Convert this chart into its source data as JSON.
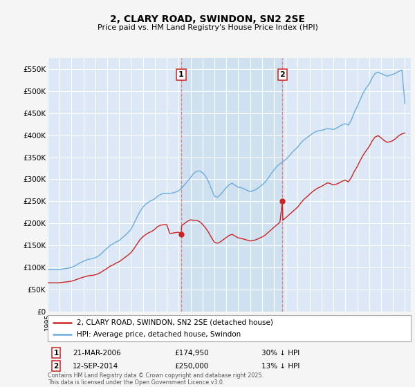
{
  "title": "2, CLARY ROAD, SWINDON, SN2 2SE",
  "subtitle": "Price paid vs. HM Land Registry's House Price Index (HPI)",
  "ylim": [
    0,
    575000
  ],
  "yticks": [
    0,
    50000,
    100000,
    150000,
    200000,
    250000,
    300000,
    350000,
    400000,
    450000,
    500000,
    550000
  ],
  "ytick_labels": [
    "£0",
    "£50K",
    "£100K",
    "£150K",
    "£200K",
    "£250K",
    "£300K",
    "£350K",
    "£400K",
    "£450K",
    "£500K",
    "£550K"
  ],
  "background_color": "#f5f5f5",
  "plot_bg_color": "#dce8f5",
  "shade_color": "#c8dcf0",
  "grid_color": "#ffffff",
  "hpi_color": "#6aabdb",
  "price_color": "#cc2222",
  "vline_color": "#e08080",
  "marker1_date": 2006.21,
  "marker1_price": 174950,
  "marker1_date_str": "21-MAR-2006",
  "marker1_pct": "30% ↓ HPI",
  "marker2_date": 2014.71,
  "marker2_price": 250000,
  "marker2_date_str": "12-SEP-2014",
  "marker2_pct": "13% ↓ HPI",
  "legend_label_price": "2, CLARY ROAD, SWINDON, SN2 2SE (detached house)",
  "legend_label_hpi": "HPI: Average price, detached house, Swindon",
  "footer": "Contains HM Land Registry data © Crown copyright and database right 2025.\nThis data is licensed under the Open Government Licence v3.0.",
  "hpi_data": [
    [
      1995.0,
      95000
    ],
    [
      1995.25,
      95500
    ],
    [
      1995.5,
      95200
    ],
    [
      1995.75,
      94800
    ],
    [
      1996.0,
      95500
    ],
    [
      1996.25,
      96500
    ],
    [
      1996.5,
      97500
    ],
    [
      1996.75,
      98500
    ],
    [
      1997.0,
      100000
    ],
    [
      1997.25,
      103000
    ],
    [
      1997.5,
      107000
    ],
    [
      1997.75,
      111000
    ],
    [
      1998.0,
      114000
    ],
    [
      1998.25,
      117000
    ],
    [
      1998.5,
      119000
    ],
    [
      1998.75,
      120000
    ],
    [
      1999.0,
      122000
    ],
    [
      1999.25,
      126000
    ],
    [
      1999.5,
      131000
    ],
    [
      1999.75,
      138000
    ],
    [
      2000.0,
      144000
    ],
    [
      2000.25,
      150000
    ],
    [
      2000.5,
      154000
    ],
    [
      2000.75,
      158000
    ],
    [
      2001.0,
      161000
    ],
    [
      2001.25,
      167000
    ],
    [
      2001.5,
      173000
    ],
    [
      2001.75,
      179000
    ],
    [
      2002.0,
      187000
    ],
    [
      2002.25,
      200000
    ],
    [
      2002.5,
      214000
    ],
    [
      2002.75,
      227000
    ],
    [
      2003.0,
      237000
    ],
    [
      2003.25,
      244000
    ],
    [
      2003.5,
      249000
    ],
    [
      2003.75,
      252000
    ],
    [
      2004.0,
      256000
    ],
    [
      2004.25,
      262000
    ],
    [
      2004.5,
      266000
    ],
    [
      2004.75,
      268000
    ],
    [
      2005.0,
      268000
    ],
    [
      2005.25,
      268000
    ],
    [
      2005.5,
      269000
    ],
    [
      2005.75,
      271000
    ],
    [
      2006.0,
      274000
    ],
    [
      2006.25,
      280000
    ],
    [
      2006.5,
      288000
    ],
    [
      2006.75,
      296000
    ],
    [
      2007.0,
      304000
    ],
    [
      2007.25,
      313000
    ],
    [
      2007.5,
      318000
    ],
    [
      2007.75,
      319000
    ],
    [
      2008.0,
      315000
    ],
    [
      2008.25,
      307000
    ],
    [
      2008.5,
      295000
    ],
    [
      2008.75,
      278000
    ],
    [
      2009.0,
      262000
    ],
    [
      2009.25,
      259000
    ],
    [
      2009.5,
      265000
    ],
    [
      2009.75,
      273000
    ],
    [
      2010.0,
      281000
    ],
    [
      2010.25,
      288000
    ],
    [
      2010.5,
      291000
    ],
    [
      2010.75,
      286000
    ],
    [
      2011.0,
      282000
    ],
    [
      2011.25,
      281000
    ],
    [
      2011.5,
      278000
    ],
    [
      2011.75,
      275000
    ],
    [
      2012.0,
      272000
    ],
    [
      2012.25,
      274000
    ],
    [
      2012.5,
      277000
    ],
    [
      2012.75,
      282000
    ],
    [
      2013.0,
      287000
    ],
    [
      2013.25,
      293000
    ],
    [
      2013.5,
      302000
    ],
    [
      2013.75,
      312000
    ],
    [
      2014.0,
      321000
    ],
    [
      2014.25,
      329000
    ],
    [
      2014.5,
      335000
    ],
    [
      2014.75,
      340000
    ],
    [
      2015.0,
      345000
    ],
    [
      2015.25,
      352000
    ],
    [
      2015.5,
      360000
    ],
    [
      2015.75,
      367000
    ],
    [
      2016.0,
      373000
    ],
    [
      2016.25,
      382000
    ],
    [
      2016.5,
      389000
    ],
    [
      2016.75,
      394000
    ],
    [
      2017.0,
      399000
    ],
    [
      2017.25,
      404000
    ],
    [
      2017.5,
      408000
    ],
    [
      2017.75,
      410000
    ],
    [
      2018.0,
      411000
    ],
    [
      2018.25,
      413000
    ],
    [
      2018.5,
      415000
    ],
    [
      2018.75,
      414000
    ],
    [
      2019.0,
      413000
    ],
    [
      2019.25,
      416000
    ],
    [
      2019.5,
      420000
    ],
    [
      2019.75,
      424000
    ],
    [
      2020.0,
      426000
    ],
    [
      2020.25,
      423000
    ],
    [
      2020.5,
      434000
    ],
    [
      2020.75,
      452000
    ],
    [
      2021.0,
      465000
    ],
    [
      2021.25,
      481000
    ],
    [
      2021.5,
      496000
    ],
    [
      2021.75,
      507000
    ],
    [
      2022.0,
      516000
    ],
    [
      2022.25,
      530000
    ],
    [
      2022.5,
      540000
    ],
    [
      2022.75,
      543000
    ],
    [
      2023.0,
      540000
    ],
    [
      2023.25,
      537000
    ],
    [
      2023.5,
      534000
    ],
    [
      2023.75,
      536000
    ],
    [
      2024.0,
      538000
    ],
    [
      2024.25,
      541000
    ],
    [
      2024.5,
      545000
    ],
    [
      2024.75,
      548000
    ],
    [
      2025.0,
      472000
    ]
  ],
  "price_data": [
    [
      1995.0,
      65000
    ],
    [
      1995.25,
      65200
    ],
    [
      1995.5,
      65100
    ],
    [
      1995.75,
      65000
    ],
    [
      1996.0,
      65500
    ],
    [
      1996.25,
      66200
    ],
    [
      1996.5,
      67000
    ],
    [
      1996.75,
      67800
    ],
    [
      1997.0,
      69000
    ],
    [
      1997.25,
      71000
    ],
    [
      1997.5,
      73500
    ],
    [
      1997.75,
      76000
    ],
    [
      1998.0,
      78000
    ],
    [
      1998.25,
      80000
    ],
    [
      1998.5,
      81500
    ],
    [
      1998.75,
      82000
    ],
    [
      1999.0,
      83500
    ],
    [
      1999.25,
      86000
    ],
    [
      1999.5,
      89500
    ],
    [
      1999.75,
      94000
    ],
    [
      2000.0,
      98000
    ],
    [
      2000.25,
      103000
    ],
    [
      2000.5,
      106000
    ],
    [
      2000.75,
      110000
    ],
    [
      2001.0,
      113000
    ],
    [
      2001.25,
      118000
    ],
    [
      2001.5,
      123000
    ],
    [
      2001.75,
      128000
    ],
    [
      2002.0,
      134000
    ],
    [
      2002.25,
      143000
    ],
    [
      2002.5,
      153000
    ],
    [
      2002.75,
      163000
    ],
    [
      2003.0,
      170000
    ],
    [
      2003.25,
      175000
    ],
    [
      2003.5,
      179000
    ],
    [
      2003.75,
      182000
    ],
    [
      2004.0,
      187000
    ],
    [
      2004.25,
      193000
    ],
    [
      2004.5,
      196000
    ],
    [
      2004.75,
      197000
    ],
    [
      2005.0,
      197000
    ],
    [
      2005.25,
      177000
    ],
    [
      2005.5,
      178000
    ],
    [
      2005.75,
      179000
    ],
    [
      2006.0,
      180000
    ],
    [
      2006.21,
      174950
    ],
    [
      2006.25,
      195000
    ],
    [
      2006.5,
      200000
    ],
    [
      2006.75,
      205000
    ],
    [
      2007.0,
      208000
    ],
    [
      2007.25,
      207000
    ],
    [
      2007.5,
      207000
    ],
    [
      2007.75,
      204000
    ],
    [
      2008.0,
      198000
    ],
    [
      2008.25,
      190000
    ],
    [
      2008.5,
      180000
    ],
    [
      2008.75,
      168000
    ],
    [
      2009.0,
      157000
    ],
    [
      2009.25,
      155000
    ],
    [
      2009.5,
      158000
    ],
    [
      2009.75,
      163000
    ],
    [
      2010.0,
      168000
    ],
    [
      2010.25,
      173000
    ],
    [
      2010.5,
      175000
    ],
    [
      2010.75,
      171000
    ],
    [
      2011.0,
      167000
    ],
    [
      2011.25,
      166000
    ],
    [
      2011.5,
      164000
    ],
    [
      2011.75,
      162000
    ],
    [
      2012.0,
      160000
    ],
    [
      2012.25,
      161000
    ],
    [
      2012.5,
      163000
    ],
    [
      2012.75,
      166000
    ],
    [
      2013.0,
      169000
    ],
    [
      2013.25,
      173000
    ],
    [
      2013.5,
      179000
    ],
    [
      2013.75,
      185000
    ],
    [
      2014.0,
      191000
    ],
    [
      2014.25,
      197000
    ],
    [
      2014.5,
      202000
    ],
    [
      2014.71,
      250000
    ],
    [
      2014.75,
      207000
    ],
    [
      2015.0,
      213000
    ],
    [
      2015.25,
      219000
    ],
    [
      2015.5,
      225000
    ],
    [
      2015.75,
      231000
    ],
    [
      2016.0,
      237000
    ],
    [
      2016.25,
      246000
    ],
    [
      2016.5,
      254000
    ],
    [
      2016.75,
      260000
    ],
    [
      2017.0,
      266000
    ],
    [
      2017.25,
      272000
    ],
    [
      2017.5,
      277000
    ],
    [
      2017.75,
      281000
    ],
    [
      2018.0,
      284000
    ],
    [
      2018.25,
      288000
    ],
    [
      2018.5,
      292000
    ],
    [
      2018.75,
      290000
    ],
    [
      2019.0,
      287000
    ],
    [
      2019.25,
      289000
    ],
    [
      2019.5,
      292000
    ],
    [
      2019.75,
      296000
    ],
    [
      2020.0,
      298000
    ],
    [
      2020.25,
      294000
    ],
    [
      2020.5,
      304000
    ],
    [
      2020.75,
      318000
    ],
    [
      2021.0,
      329000
    ],
    [
      2021.25,
      343000
    ],
    [
      2021.5,
      355000
    ],
    [
      2021.75,
      365000
    ],
    [
      2022.0,
      374000
    ],
    [
      2022.25,
      387000
    ],
    [
      2022.5,
      396000
    ],
    [
      2022.75,
      399000
    ],
    [
      2023.0,
      394000
    ],
    [
      2023.25,
      388000
    ],
    [
      2023.5,
      384000
    ],
    [
      2023.75,
      385000
    ],
    [
      2024.0,
      388000
    ],
    [
      2024.25,
      393000
    ],
    [
      2024.5,
      399000
    ],
    [
      2024.75,
      403000
    ],
    [
      2025.0,
      405000
    ]
  ]
}
